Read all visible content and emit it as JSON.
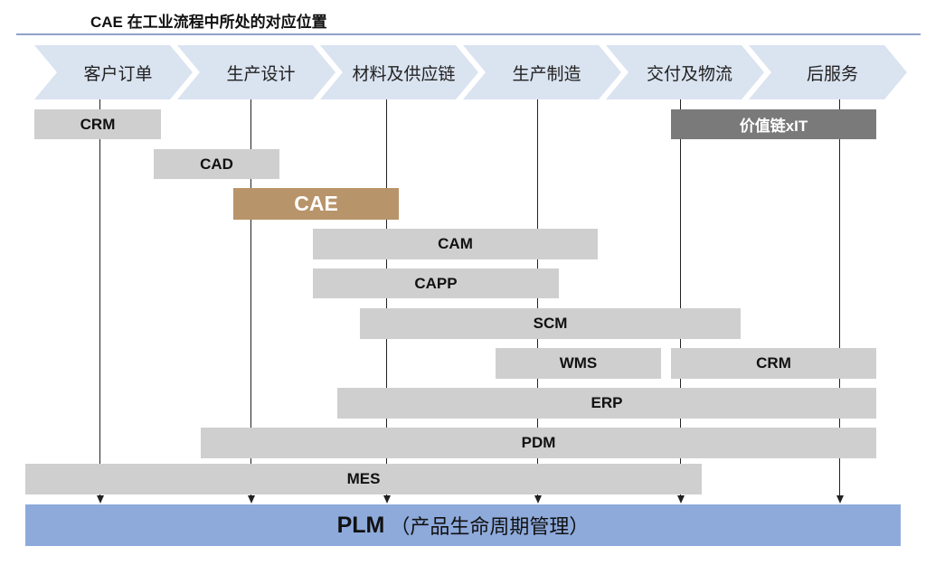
{
  "title": "CAE 在工业流程中所处的对应位置",
  "stages": [
    "客户订单",
    "生产设计",
    "材料及供应链",
    "生产制造",
    "交付及物流",
    "后服务"
  ],
  "systems": {
    "crm_top": "CRM",
    "value_chain_it": "价值链xIT",
    "cad": "CAD",
    "cae": "CAE",
    "cam": "CAM",
    "capp": "CAPP",
    "scm": "SCM",
    "wms": "WMS",
    "crm_bottom": "CRM",
    "erp": "ERP",
    "pdm": "PDM",
    "mes": "MES"
  },
  "plm": {
    "label": "PLM",
    "sub": "（产品生命周期管理）"
  },
  "colors": {
    "chevron": "#dae3f0",
    "bar": "#d0cfd0",
    "cae": "#b8946a",
    "value_chain": "#7a7a7a",
    "plm": "#8eaadb"
  }
}
